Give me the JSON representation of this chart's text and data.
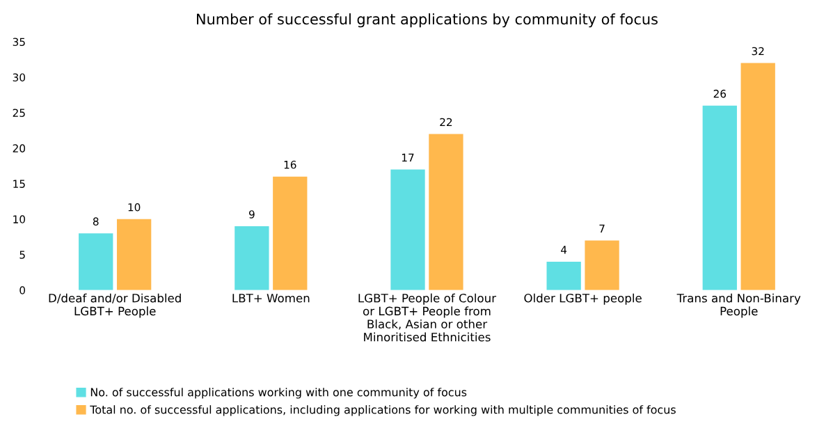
{
  "chart_data": {
    "type": "bar",
    "title": "Number of successful grant applications by community of focus",
    "categories": [
      "D/deaf and/or Disabled\nLGBT+ People",
      "LBT+ Women",
      "LGBT+ People of Colour\nor LGBT+ People from\nBlack, Asian or other\nMinoritised Ethnicities",
      "Older LGBT+ people",
      "Trans and Non-Binary\nPeople"
    ],
    "series": [
      {
        "name": "No. of successful applications working with one community of focus",
        "color": "#5fdfe3",
        "values": [
          8,
          9,
          17,
          4,
          26
        ]
      },
      {
        "name": "Total no. of successful applications, including applications for working with multiple communities of focus",
        "color": "#ffb84d",
        "values": [
          10,
          16,
          22,
          7,
          32
        ]
      }
    ],
    "ylim": [
      0,
      35
    ],
    "yticks": [
      0,
      5,
      10,
      15,
      20,
      25,
      30,
      35
    ],
    "grid": false,
    "legend": "bottom",
    "data_labels": true
  }
}
